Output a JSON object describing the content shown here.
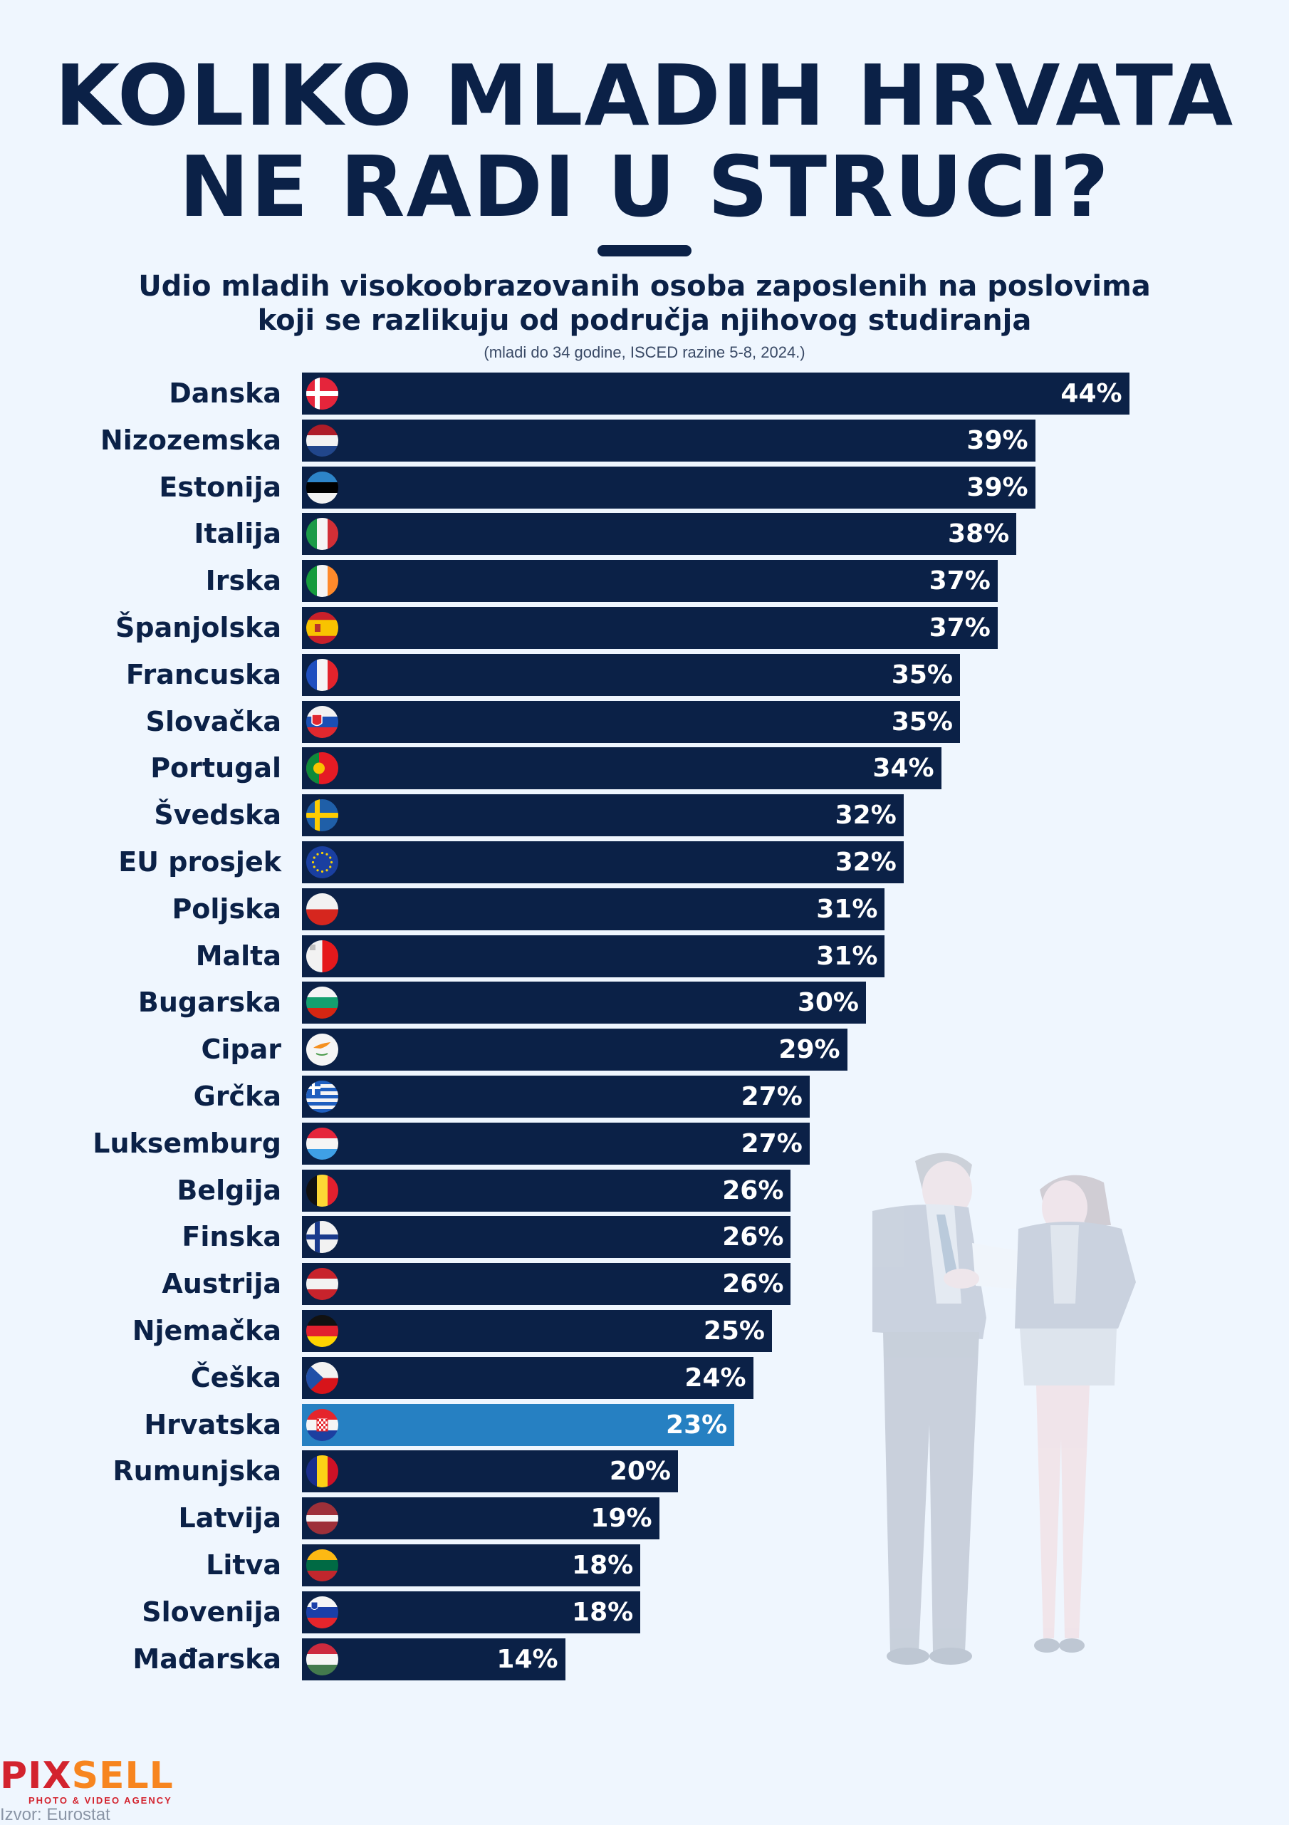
{
  "header": {
    "title_line1": "KOLIKO MLADIH HRVATA",
    "title_line2": "NE RADI U STRUCI?",
    "subtitle_line1": "Udio mladih visokoobrazovanih osoba zaposlenih na poslovima",
    "subtitle_line2": "koji se razlikuju od područja njihovog studiranja",
    "note": "(mladi do 34 godine, ISCED razine 5-8, 2024.)"
  },
  "colors": {
    "bar": "#0b2147",
    "highlight": "#2680c2",
    "background": "#eff6fe",
    "logo_red": "#d3232e",
    "logo_orange": "#f7851f"
  },
  "chart_data": {
    "type": "bar",
    "orientation": "horizontal",
    "title": "Udio mladih visokoobrazovanih osoba zaposlenih na poslovima koji se razlikuju od područja njihovog studiranja",
    "subtitle": "(mladi do 34 godine, ISCED razine 5-8, 2024.)",
    "xlabel": "",
    "ylabel": "",
    "unit": "%",
    "xlim": [
      0,
      44
    ],
    "grid": false,
    "legend": "none",
    "highlight_category": "Hrvatska",
    "categories": [
      "Danska",
      "Nizozemska",
      "Estonija",
      "Italija",
      "Irska",
      "Španjolska",
      "Francuska",
      "Slovačka",
      "Portugal",
      "Švedska",
      "EU prosjek",
      "Poljska",
      "Malta",
      "Bugarska",
      "Cipar",
      "Grčka",
      "Luksemburg",
      "Belgija",
      "Finska",
      "Austrija",
      "Njemačka",
      "Češka",
      "Hrvatska",
      "Rumunjska",
      "Latvija",
      "Litva",
      "Slovenija",
      "Mađarska"
    ],
    "values": [
      44,
      39,
      39,
      38,
      37,
      37,
      35,
      35,
      34,
      32,
      32,
      31,
      31,
      30,
      29,
      27,
      27,
      26,
      26,
      26,
      25,
      24,
      23,
      20,
      19,
      18,
      18,
      14
    ],
    "value_labels": [
      "44%",
      "39%",
      "39%",
      "38%",
      "37%",
      "37%",
      "35%",
      "35%",
      "34%",
      "32%",
      "32%",
      "31%",
      "31%",
      "30%",
      "29%",
      "27%",
      "27%",
      "26%",
      "26%",
      "26%",
      "25%",
      "24%",
      "23%",
      "20%",
      "19%",
      "18%",
      "18%",
      "14%"
    ],
    "flags": [
      "denmark-flag-icon",
      "netherlands-flag-icon",
      "estonia-flag-icon",
      "italy-flag-icon",
      "ireland-flag-icon",
      "spain-flag-icon",
      "france-flag-icon",
      "slovakia-flag-icon",
      "portugal-flag-icon",
      "sweden-flag-icon",
      "eu-flag-icon",
      "poland-flag-icon",
      "malta-flag-icon",
      "bulgaria-flag-icon",
      "cyprus-flag-icon",
      "greece-flag-icon",
      "luxembourg-flag-icon",
      "belgium-flag-icon",
      "finland-flag-icon",
      "austria-flag-icon",
      "germany-flag-icon",
      "czechia-flag-icon",
      "croatia-flag-icon",
      "romania-flag-icon",
      "latvia-flag-icon",
      "lithuania-flag-icon",
      "slovenia-flag-icon",
      "hungary-flag-icon"
    ]
  },
  "footer": {
    "logo_part1": "PIX",
    "logo_part2": "SELL",
    "logo_tagline": "PHOTO & VIDEO AGENCY",
    "source": "Izvor: Eurostat"
  }
}
